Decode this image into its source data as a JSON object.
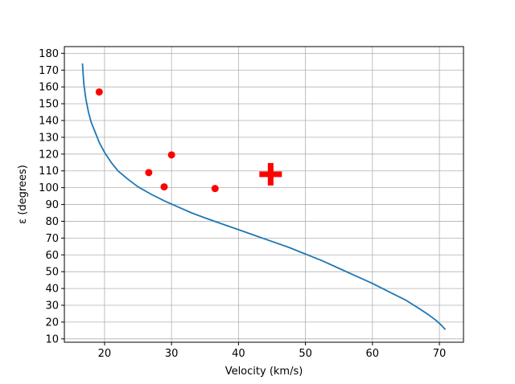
{
  "chart_data": {
    "type": "scatter",
    "xlabel": "Velocity (km/s)",
    "ylabel": "ε (degrees)",
    "xlim": [
      14,
      73.6
    ],
    "ylim": [
      8,
      184
    ],
    "grid": true,
    "x_ticks": [
      20,
      30,
      40,
      50,
      60,
      70
    ],
    "y_ticks": [
      10,
      20,
      30,
      40,
      50,
      60,
      70,
      80,
      90,
      100,
      110,
      120,
      130,
      140,
      150,
      160,
      170,
      180
    ],
    "series": [
      {
        "kind": "line",
        "color": "#1f77b4",
        "x": [
          16.7,
          16.9,
          17.2,
          17.6,
          18.0,
          18.6,
          19.2,
          20.0,
          21.0,
          22.0,
          23.5,
          25.0,
          27.0,
          29.0,
          31.0,
          33.0,
          35.0,
          37.5,
          40.0,
          42.5,
          45.0,
          47.5,
          50.0,
          52.5,
          55.0,
          57.5,
          60.0,
          62.5,
          65.0,
          67.0,
          68.5,
          69.5,
          70.2,
          70.9
        ],
        "y": [
          174,
          162,
          153,
          145,
          139,
          133,
          127,
          121,
          115,
          110,
          105,
          100.5,
          96,
          92,
          88.5,
          85,
          82,
          78.5,
          75,
          71.5,
          68,
          64.5,
          60.5,
          56.5,
          52,
          47.5,
          43,
          38,
          33,
          28,
          24,
          21,
          18.5,
          15.5
        ]
      },
      {
        "kind": "points",
        "color": "#ff0000",
        "x": [
          19.2,
          26.6,
          28.9,
          30.0,
          36.5
        ],
        "y": [
          157,
          109,
          100.5,
          119.5,
          99.5
        ]
      },
      {
        "kind": "plus_marker",
        "color": "#ff0000",
        "x": [
          44.8
        ],
        "y": [
          108
        ]
      }
    ]
  }
}
